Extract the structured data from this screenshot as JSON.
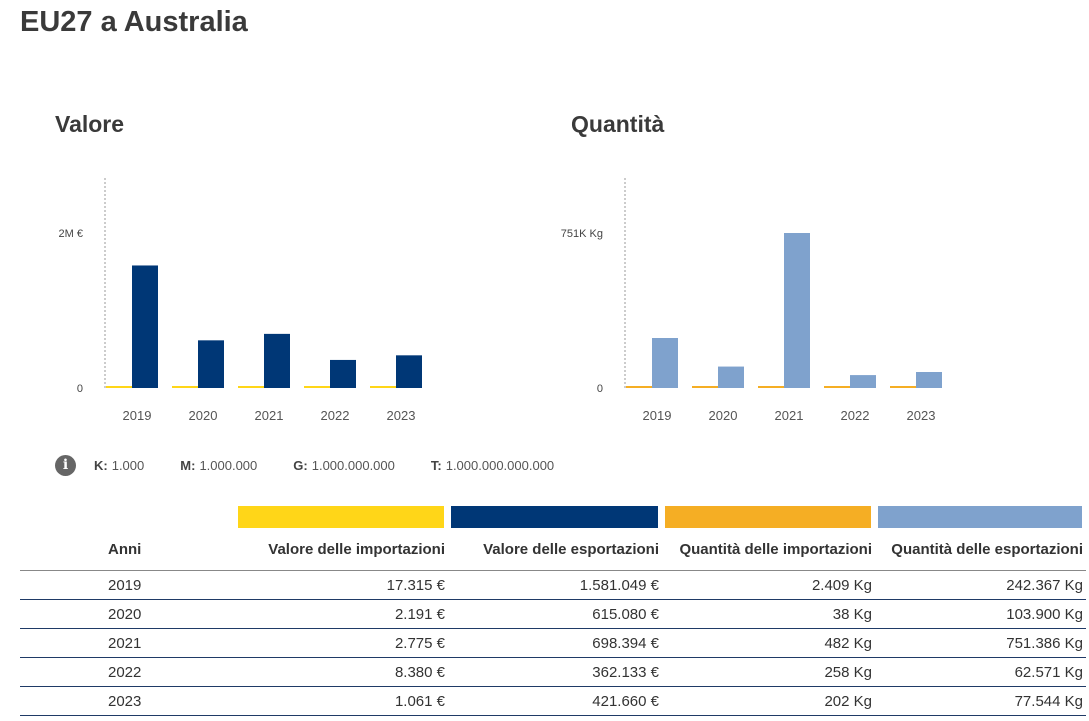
{
  "page": {
    "title": "EU27 a Australia"
  },
  "colors": {
    "valore_importazioni": "#FFD618",
    "valore_esportazioni": "#003776",
    "quantita_importazioni": "#F5AE24",
    "quantita_esportazioni": "#7FA2CD"
  },
  "chart_data": [
    {
      "type": "bar",
      "title": "Valore",
      "categories": [
        "2019",
        "2020",
        "2021",
        "2022",
        "2023"
      ],
      "series": [
        {
          "values": [
            17315,
            2191,
            2775,
            8380,
            1061
          ],
          "color": "#FFD618"
        },
        {
          "values": [
            1581049,
            615080,
            698394,
            362133,
            421660
          ],
          "color": "#003776"
        }
      ],
      "ylim": [
        0,
        2000000
      ],
      "y_ticks": [
        {
          "value": 0,
          "label": "0"
        },
        {
          "value": 2000000,
          "label": "2M €"
        }
      ],
      "grid": false
    },
    {
      "type": "bar",
      "title": "Quantità",
      "categories": [
        "2019",
        "2020",
        "2021",
        "2022",
        "2023"
      ],
      "series": [
        {
          "values": [
            2409,
            38,
            482,
            258,
            202
          ],
          "color": "#F5AE24"
        },
        {
          "values": [
            242367,
            103900,
            751386,
            62571,
            77544
          ],
          "color": "#7FA2CD"
        }
      ],
      "ylim": [
        0,
        751386
      ],
      "y_ticks": [
        {
          "value": 0,
          "label": "0"
        },
        {
          "value": 751386,
          "label": "751K Kg"
        }
      ],
      "grid": false
    }
  ],
  "units_legend": [
    {
      "key": "K:",
      "value": "1.000"
    },
    {
      "key": "M:",
      "value": "1.000.000"
    },
    {
      "key": "G:",
      "value": "1.000.000.000"
    },
    {
      "key": "T:",
      "value": "1.000.000.000.000"
    }
  ],
  "table": {
    "headers": [
      "Anni",
      "Valore delle importazioni",
      "Valore delle esportazioni",
      "Quantità delle importazioni",
      "Quantità delle esportazioni"
    ],
    "rows": [
      [
        "2019",
        "17.315 €",
        "1.581.049 €",
        "2.409 Kg",
        "242.367 Kg"
      ],
      [
        "2020",
        "2.191 €",
        "615.080 €",
        "38 Kg",
        "103.900 Kg"
      ],
      [
        "2021",
        "2.775 €",
        "698.394 €",
        "482 Kg",
        "751.386 Kg"
      ],
      [
        "2022",
        "8.380 €",
        "362.133 €",
        "258 Kg",
        "62.571 Kg"
      ],
      [
        "2023",
        "1.061 €",
        "421.660 €",
        "202 Kg",
        "77.544 Kg"
      ]
    ]
  }
}
